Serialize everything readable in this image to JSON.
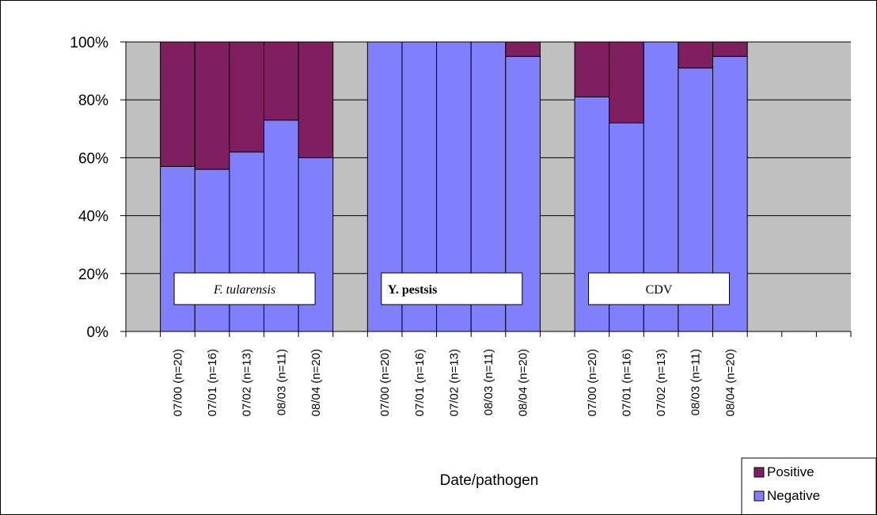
{
  "chart_data": {
    "type": "bar",
    "stacked": true,
    "percent_stacked": true,
    "ylim": [
      0,
      100
    ],
    "yticks": [
      "0%",
      "20%",
      "40%",
      "60%",
      "80%",
      "100%"
    ],
    "xlabel": "Date/pathogen",
    "ylabel": "",
    "grid": true,
    "legend_placement": "bottom-right",
    "groups": [
      {
        "label": "F. tularensis",
        "label_style": "italic",
        "categories": [
          "07/00 (n=20)",
          "07/01 (n=16)",
          "07/02 (n=13)",
          "08/03 (n=11)",
          "08/04 (n=20)"
        ],
        "negative": [
          57,
          56,
          62,
          73,
          60
        ],
        "positive": [
          43,
          44,
          38,
          27,
          40
        ]
      },
      {
        "label": "Y. pestsis",
        "label_style": "bold",
        "categories": [
          "07/00 (n=20)",
          "07/01 (n=16)",
          "07/02 (n=13)",
          "08/03 (n=11)",
          "08/04 (n=20)"
        ],
        "negative": [
          100,
          100,
          100,
          100,
          95
        ],
        "positive": [
          0,
          0,
          0,
          0,
          5
        ]
      },
      {
        "label": "CDV",
        "label_style": "normal",
        "categories": [
          "07/00 (n=20)",
          "07/01 (n=16)",
          "07/02 (n=13)",
          "08/03 (n=11)",
          "08/04 (n=20)"
        ],
        "negative": [
          81,
          72,
          100,
          91,
          95
        ],
        "positive": [
          19,
          28,
          0,
          9,
          5
        ]
      }
    ],
    "series": [
      {
        "name": "Positive",
        "color": "#7f1f5f"
      },
      {
        "name": "Negative",
        "color": "#8080ff"
      }
    ],
    "plot_background": "#c0c0c0"
  }
}
